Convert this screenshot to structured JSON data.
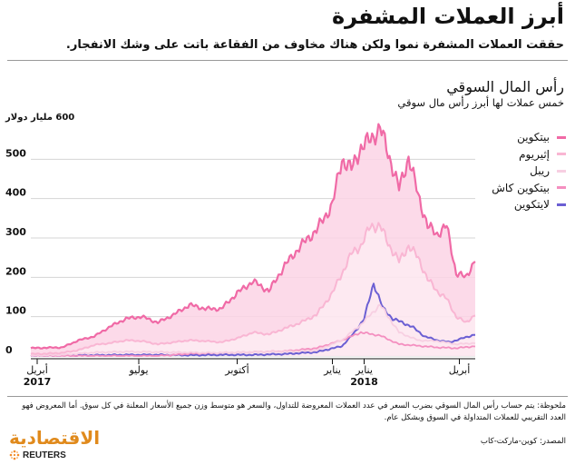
{
  "header": {
    "title": "أبرز العملات المشفرة",
    "subtitle": "حققت العملات المشفرة نموا ولكن هناك مخاوف من الفقاعة باتت على وشك الانفجار."
  },
  "chart_data": {
    "type": "area",
    "title": "رأس المال السوقي",
    "subtitle": "خمس عملات لها أبرز رأس مال سوقي",
    "ylabel": "600 مليار دولار",
    "ylim": [
      0,
      600
    ],
    "yticks": [
      0,
      100,
      200,
      300,
      400,
      500
    ],
    "x_range": [
      0,
      14
    ],
    "x_ticks": [
      {
        "pos": 0.2,
        "label": "أبريل",
        "year": "2017"
      },
      {
        "pos": 3.4,
        "label": "يوليو",
        "year": ""
      },
      {
        "pos": 6.5,
        "label": "أكتوبر",
        "year": ""
      },
      {
        "pos": 9.5,
        "label": "يناير",
        "year": ""
      },
      {
        "pos": 10.5,
        "label": "يناير",
        "year": "2018"
      },
      {
        "pos": 13.5,
        "label": "أبريل",
        "year": ""
      }
    ],
    "series": [
      {
        "name": "بيتكوين",
        "color": "#f06aa6",
        "x": [
          0,
          0.5,
          1,
          1.5,
          2,
          2.5,
          3,
          3.5,
          4,
          4.5,
          5,
          5.5,
          6,
          6.5,
          7,
          7.5,
          8,
          8.5,
          9,
          9.5,
          9.8,
          10.1,
          10.4,
          10.7,
          11,
          11.3,
          11.6,
          11.9,
          12.2,
          12.5,
          12.8,
          13.1,
          13.4,
          13.7,
          14
        ],
        "y": [
          20,
          21,
          22,
          40,
          50,
          75,
          95,
          100,
          85,
          105,
          130,
          120,
          120,
          160,
          190,
          165,
          230,
          280,
          320,
          385,
          500,
          475,
          530,
          550,
          580,
          505,
          425,
          505,
          410,
          330,
          310,
          330,
          210,
          200,
          245
        ]
      },
      {
        "name": "إثيريوم",
        "color": "#f9b6d3",
        "x": [
          0,
          0.5,
          1,
          1.5,
          2,
          2.5,
          3,
          3.5,
          4,
          4.5,
          5,
          5.5,
          6,
          6.5,
          7,
          7.5,
          8,
          8.5,
          9,
          9.5,
          9.8,
          10.1,
          10.4,
          10.7,
          11,
          11.3,
          11.6,
          11.9,
          12.2,
          12.5,
          12.8,
          13.1,
          13.4,
          13.7,
          14
        ],
        "y": [
          5,
          6,
          8,
          15,
          28,
          33,
          40,
          38,
          30,
          35,
          40,
          38,
          35,
          45,
          60,
          55,
          70,
          85,
          105,
          160,
          210,
          260,
          280,
          330,
          330,
          280,
          240,
          280,
          250,
          195,
          165,
          145,
          100,
          85,
          105
        ]
      },
      {
        "name": "ريبل",
        "color": "#f7cfe2",
        "x": [
          0,
          1,
          2,
          3,
          4,
          5,
          6,
          7,
          8,
          9,
          9.8,
          10.4,
          11,
          11.6,
          12.2,
          12.8,
          13.4,
          14
        ],
        "y": [
          1,
          3,
          9,
          11,
          10,
          9,
          8,
          10,
          11,
          14,
          40,
          80,
          130,
          60,
          40,
          38,
          30,
          33
        ]
      },
      {
        "name": "بيتكوين كاش",
        "color": "#f48fc0",
        "x": [
          0,
          1,
          2,
          3,
          4,
          5,
          6,
          7,
          8,
          9,
          9.8,
          10.4,
          11,
          11.6,
          12.2,
          12.8,
          13.4,
          14
        ],
        "y": [
          0,
          0,
          0,
          0,
          0,
          6,
          8,
          10,
          12,
          20,
          40,
          60,
          52,
          30,
          26,
          22,
          20,
          25
        ]
      },
      {
        "name": "لايتكوين",
        "color": "#6b5fd3",
        "x": [
          0,
          1,
          2,
          3,
          4,
          5,
          6,
          7,
          8,
          9,
          9.8,
          10.2,
          10.5,
          10.8,
          11.1,
          11.4,
          11.7,
          12,
          12.4,
          12.8,
          13.2,
          13.6,
          14
        ],
        "y": [
          0,
          1,
          2,
          3,
          3,
          2,
          3,
          3,
          5,
          10,
          25,
          60,
          95,
          185,
          120,
          95,
          85,
          75,
          50,
          40,
          35,
          45,
          55
        ]
      }
    ]
  },
  "footer": {
    "note": "ملحوظة: يتم حساب رأس المال السوقي بضرب السعر في عدد العملات المعروضة للتداول، والسعر هو متوسط وزن جميع الأسعار المعلنة في كل سوق. أما المعروض فهو العدد التقريبي للعملات المتداولة في السوق وبشكل عام.",
    "source": "المصدر: كوين-ماركت-كاب",
    "brand": "الاقتصادية",
    "reuters": "REUTERS"
  }
}
